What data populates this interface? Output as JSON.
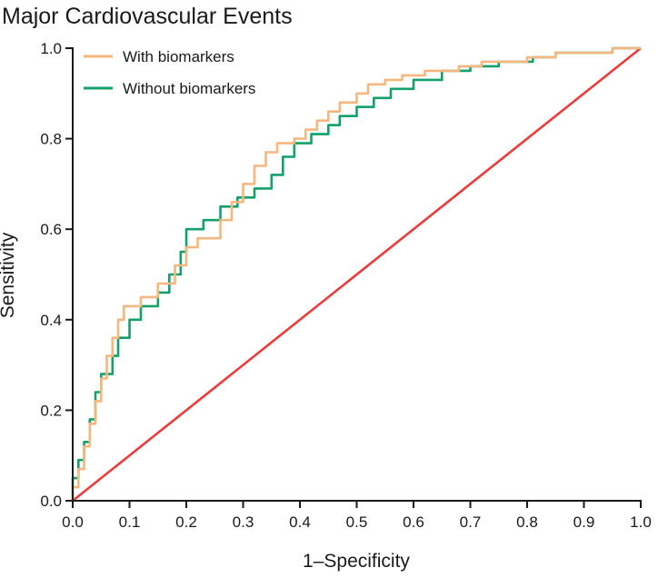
{
  "chart_data": {
    "type": "line",
    "title": "Major Cardiovascular Events",
    "xlabel": "1–Specificity",
    "ylabel": "Sensitivity",
    "xlim": [
      0,
      1
    ],
    "ylim": [
      0,
      1
    ],
    "xticks": [
      0.0,
      0.1,
      0.2,
      0.3,
      0.4,
      0.5,
      0.6,
      0.7,
      0.8,
      0.9,
      1.0
    ],
    "yticks": [
      0.0,
      0.2,
      0.4,
      0.6,
      0.8,
      1.0
    ],
    "xtick_labels": [
      "0.0",
      "0.1",
      "0.2",
      "0.3",
      "0.4",
      "0.5",
      "0.6",
      "0.7",
      "0.8",
      "0.9",
      "1.0"
    ],
    "ytick_labels": [
      "0.0",
      "0.2",
      "0.4",
      "0.6",
      "0.8",
      "1.0"
    ],
    "grid": false,
    "legend_position": "top-left",
    "series": [
      {
        "name": "With biomarkers",
        "color": "#f5b77e",
        "x": [
          0,
          0,
          0.01,
          0.01,
          0.02,
          0.02,
          0.03,
          0.03,
          0.04,
          0.04,
          0.05,
          0.05,
          0.06,
          0.06,
          0.07,
          0.07,
          0.08,
          0.08,
          0.09,
          0.09,
          0.12,
          0.12,
          0.15,
          0.15,
          0.18,
          0.18,
          0.2,
          0.2,
          0.22,
          0.22,
          0.26,
          0.26,
          0.28,
          0.28,
          0.3,
          0.3,
          0.32,
          0.32,
          0.34,
          0.34,
          0.36,
          0.36,
          0.39,
          0.39,
          0.41,
          0.41,
          0.43,
          0.43,
          0.45,
          0.45,
          0.47,
          0.47,
          0.5,
          0.5,
          0.52,
          0.52,
          0.55,
          0.55,
          0.58,
          0.58,
          0.62,
          0.62,
          0.68,
          0.68,
          0.72,
          0.72,
          0.8,
          0.8,
          0.85,
          0.85,
          0.95,
          0.95,
          1.0
        ],
        "y": [
          0,
          0.03,
          0.03,
          0.07,
          0.07,
          0.12,
          0.12,
          0.17,
          0.17,
          0.22,
          0.22,
          0.27,
          0.27,
          0.32,
          0.32,
          0.36,
          0.36,
          0.4,
          0.4,
          0.43,
          0.43,
          0.45,
          0.45,
          0.48,
          0.48,
          0.52,
          0.52,
          0.56,
          0.56,
          0.58,
          0.58,
          0.62,
          0.62,
          0.66,
          0.66,
          0.7,
          0.7,
          0.74,
          0.74,
          0.77,
          0.77,
          0.79,
          0.79,
          0.8,
          0.8,
          0.82,
          0.82,
          0.84,
          0.84,
          0.86,
          0.86,
          0.88,
          0.88,
          0.9,
          0.9,
          0.92,
          0.92,
          0.93,
          0.93,
          0.94,
          0.94,
          0.95,
          0.95,
          0.96,
          0.96,
          0.97,
          0.97,
          0.98,
          0.98,
          0.99,
          0.99,
          1.0,
          1.0
        ]
      },
      {
        "name": "Without biomarkers",
        "color": "#13a06a",
        "x": [
          0,
          0,
          0.01,
          0.01,
          0.02,
          0.02,
          0.03,
          0.03,
          0.04,
          0.04,
          0.05,
          0.05,
          0.07,
          0.07,
          0.08,
          0.08,
          0.1,
          0.1,
          0.12,
          0.12,
          0.15,
          0.15,
          0.17,
          0.17,
          0.19,
          0.19,
          0.2,
          0.2,
          0.23,
          0.23,
          0.26,
          0.26,
          0.29,
          0.29,
          0.32,
          0.32,
          0.35,
          0.35,
          0.37,
          0.37,
          0.39,
          0.39,
          0.42,
          0.42,
          0.45,
          0.45,
          0.47,
          0.47,
          0.5,
          0.5,
          0.53,
          0.53,
          0.56,
          0.56,
          0.6,
          0.6,
          0.65,
          0.65,
          0.7,
          0.7,
          0.75,
          0.75,
          0.81,
          0.81,
          0.85,
          0.85,
          0.95,
          0.95,
          1.0
        ],
        "y": [
          0,
          0.05,
          0.05,
          0.09,
          0.09,
          0.13,
          0.13,
          0.18,
          0.18,
          0.24,
          0.24,
          0.28,
          0.28,
          0.32,
          0.32,
          0.36,
          0.36,
          0.4,
          0.4,
          0.43,
          0.43,
          0.46,
          0.46,
          0.5,
          0.5,
          0.55,
          0.55,
          0.6,
          0.6,
          0.62,
          0.62,
          0.65,
          0.65,
          0.67,
          0.67,
          0.69,
          0.69,
          0.72,
          0.72,
          0.76,
          0.76,
          0.79,
          0.79,
          0.81,
          0.81,
          0.83,
          0.83,
          0.85,
          0.85,
          0.87,
          0.87,
          0.89,
          0.89,
          0.91,
          0.91,
          0.93,
          0.93,
          0.95,
          0.95,
          0.96,
          0.96,
          0.97,
          0.97,
          0.98,
          0.98,
          0.99,
          0.99,
          1.0,
          1.0
        ]
      },
      {
        "color": "#ee3b3b",
        "x": [
          0,
          1
        ],
        "y": [
          0,
          1
        ]
      }
    ]
  }
}
